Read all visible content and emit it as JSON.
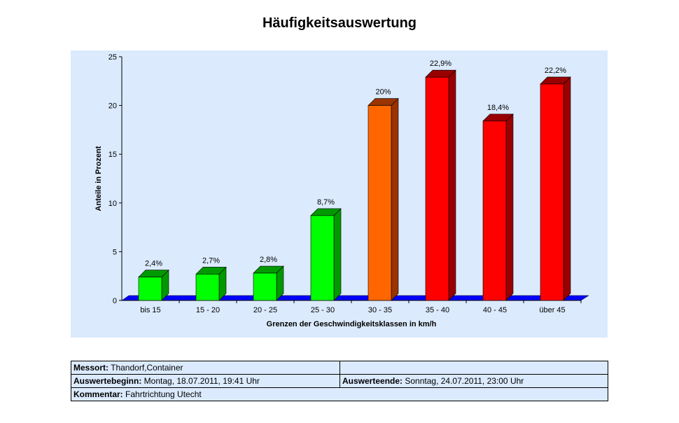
{
  "chart_data": {
    "type": "bar",
    "title": "Häufigkeitsauswertung",
    "xlabel": "Grenzen der Geschwindigkeitsklassen in km/h",
    "ylabel": "Anteile in Prozent",
    "ylim": [
      0,
      25
    ],
    "yticks": [
      "0",
      "5",
      "10",
      "15",
      "20",
      "25"
    ],
    "categories": [
      "bis 15",
      "15 - 20",
      "20 - 25",
      "25 - 30",
      "30 - 35",
      "35 - 40",
      "40 - 45",
      "über 45"
    ],
    "values": [
      2.4,
      2.7,
      2.8,
      8.7,
      20.0,
      22.9,
      18.4,
      22.2
    ],
    "data_labels": [
      "2,4%",
      "2,7%",
      "2,8%",
      "8,7%",
      "20%",
      "22,9%",
      "18,4%",
      "22,2%"
    ],
    "bar_colors": [
      "#00ff00",
      "#00ff00",
      "#00ff00",
      "#00ff00",
      "#ff6600",
      "#ff0000",
      "#ff0000",
      "#ff0000"
    ],
    "bar_side_colors": [
      "#009900",
      "#009900",
      "#009900",
      "#009900",
      "#993300",
      "#990000",
      "#990000",
      "#990000"
    ],
    "floor_color": "#0000ff",
    "plot_background": "#dbeafd",
    "grid": false,
    "three_d": true
  },
  "info": {
    "messort_label": "Messort:",
    "messort_value": " Thandorf,Container",
    "beginn_label": "Auswertebeginn:",
    "beginn_value": " Montag, 18.07.2011, 19:41 Uhr",
    "ende_label": "Auswerteende:",
    "ende_value": " Sonntag, 24.07.2011, 23:00 Uhr",
    "kommentar_label": "Kommentar:",
    "kommentar_value": " Fahrtrichtung Utecht"
  }
}
